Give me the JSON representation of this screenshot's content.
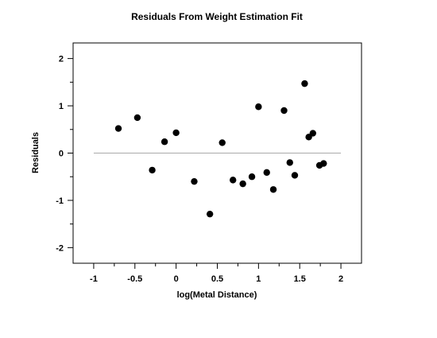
{
  "chart_data": {
    "type": "scatter",
    "title": "Residuals From Weight Estimation Fit",
    "xlabel": "log(Metal Distance)",
    "ylabel": "Residuals",
    "xlim": [
      -1.25,
      2.25
    ],
    "ylim": [
      -2.33,
      2.33
    ],
    "x_ticks": [
      -1,
      -0.5,
      0,
      0.5,
      1,
      1.5,
      2
    ],
    "x_tick_labels": [
      "-1",
      "-0.5",
      "0",
      "0.5",
      "1",
      "1.5",
      "2"
    ],
    "y_ticks": [
      -2,
      -1,
      0,
      1,
      2
    ],
    "y_tick_labels": [
      "-2",
      "-1",
      "0",
      "1",
      "2"
    ],
    "grid": false,
    "reference_line": {
      "y": 0,
      "x_from": -1,
      "x_to": 2,
      "color": "#aaaaaa"
    },
    "points": [
      {
        "x": -0.7,
        "y": 0.52
      },
      {
        "x": -0.47,
        "y": 0.75
      },
      {
        "x": -0.29,
        "y": -0.36
      },
      {
        "x": -0.14,
        "y": 0.24
      },
      {
        "x": 0.0,
        "y": 0.43
      },
      {
        "x": 0.22,
        "y": -0.6
      },
      {
        "x": 0.41,
        "y": -1.29
      },
      {
        "x": 0.56,
        "y": 0.22
      },
      {
        "x": 0.69,
        "y": -0.57
      },
      {
        "x": 0.81,
        "y": -0.65
      },
      {
        "x": 0.92,
        "y": -0.5
      },
      {
        "x": 1.0,
        "y": 0.98
      },
      {
        "x": 1.1,
        "y": -0.41
      },
      {
        "x": 1.18,
        "y": -0.77
      },
      {
        "x": 1.31,
        "y": 0.9
      },
      {
        "x": 1.38,
        "y": -0.2
      },
      {
        "x": 1.44,
        "y": -0.47
      },
      {
        "x": 1.56,
        "y": 1.47
      },
      {
        "x": 1.61,
        "y": 0.34
      },
      {
        "x": 1.66,
        "y": 0.42
      },
      {
        "x": 1.74,
        "y": -0.26
      },
      {
        "x": 1.79,
        "y": -0.22
      }
    ],
    "marker_color": "#000000"
  }
}
